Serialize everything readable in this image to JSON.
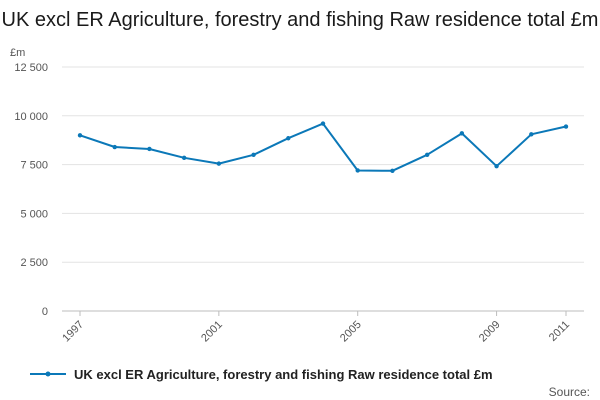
{
  "chart_data": {
    "type": "line",
    "title": "UK excl ER Agriculture, forestry and fishing Raw residence total £m",
    "ylabel": "£m",
    "xlabel": "",
    "ylim": [
      0,
      12500
    ],
    "xlim": [
      1997,
      2011
    ],
    "yticks": [
      0,
      2500,
      5000,
      7500,
      10000,
      12500
    ],
    "ytick_labels": [
      "0",
      "2 500",
      "5 000",
      "7 500",
      "10 000",
      "12 500"
    ],
    "xticks": [
      1997,
      2001,
      2005,
      2009,
      2011
    ],
    "xtick_labels": [
      "1997",
      "2001",
      "2005",
      "2009",
      "2011"
    ],
    "grid": true,
    "legend_position": "bottom",
    "series": [
      {
        "name": "UK excl ER Agriculture, forestry and fishing Raw residence total £m",
        "color": "#0b78b8",
        "x": [
          1997,
          1998,
          1999,
          2000,
          2001,
          2002,
          2003,
          2004,
          2005,
          2006,
          2007,
          2008,
          2009,
          2010,
          2011
        ],
        "values": [
          9000,
          8400,
          8300,
          7850,
          7550,
          8000,
          8850,
          9600,
          7200,
          7180,
          8000,
          9100,
          7420,
          9050,
          9450
        ]
      }
    ],
    "source": "Source:"
  }
}
